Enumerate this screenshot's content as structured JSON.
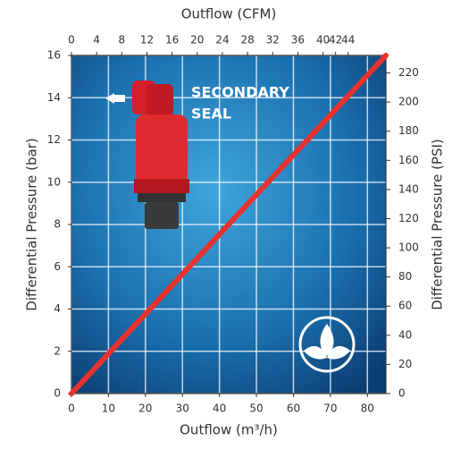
{
  "chart_data": {
    "type": "line",
    "title_top": "Outflow (CFM)",
    "xlabel": "Outflow (m³/h)",
    "ylabel": "Differential Pressure (bar)",
    "y2label": "Differential Pressure (PSI)",
    "annotation": [
      "SECONDARY",
      "SEAL"
    ],
    "x": [
      0,
      85
    ],
    "series": [
      {
        "color": "#e8322e",
        "values": [
          0,
          16
        ]
      }
    ],
    "xlim": [
      0,
      85
    ],
    "xticks": [
      0,
      10,
      20,
      30,
      40,
      50,
      60,
      70,
      80
    ],
    "x2lim": [
      0,
      50
    ],
    "x2ticks": [
      0,
      4,
      8,
      12,
      16,
      20,
      24,
      28,
      32,
      36,
      40,
      42,
      44
    ],
    "ylim": [
      0,
      16
    ],
    "yticks": [
      0,
      2,
      4,
      6,
      8,
      10,
      12,
      14,
      16
    ],
    "y2lim": [
      0,
      232
    ],
    "y2ticks": [
      0,
      20,
      40,
      60,
      80,
      100,
      120,
      140,
      160,
      180,
      200,
      220
    ],
    "grid": true
  }
}
